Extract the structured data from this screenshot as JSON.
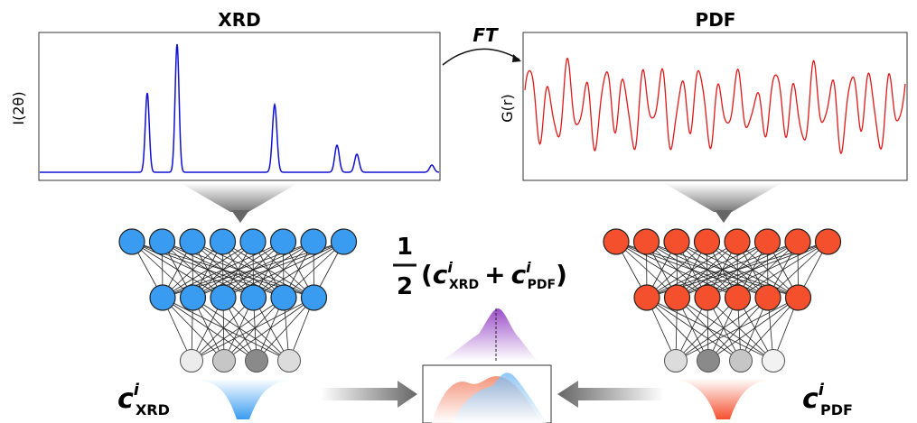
{
  "panels": [
    {
      "title": "XRD",
      "y_label": "I(2θ)"
    },
    {
      "title": "PDF",
      "y_label": "G(r)"
    }
  ],
  "transform": "FT",
  "formula": {
    "numerator": "1",
    "denominator": "2",
    "open": "(",
    "plus": "+",
    "close": ")",
    "terms": [
      {
        "symbol": "c",
        "superscript": "i",
        "subscript": "XRD"
      },
      {
        "symbol": "c",
        "superscript": "i",
        "subscript": "PDF"
      }
    ]
  },
  "outputs": [
    {
      "symbol": "c",
      "superscript": "i",
      "subscript": "XRD"
    },
    {
      "symbol": "c",
      "superscript": "i",
      "subscript": "PDF"
    }
  ]
}
